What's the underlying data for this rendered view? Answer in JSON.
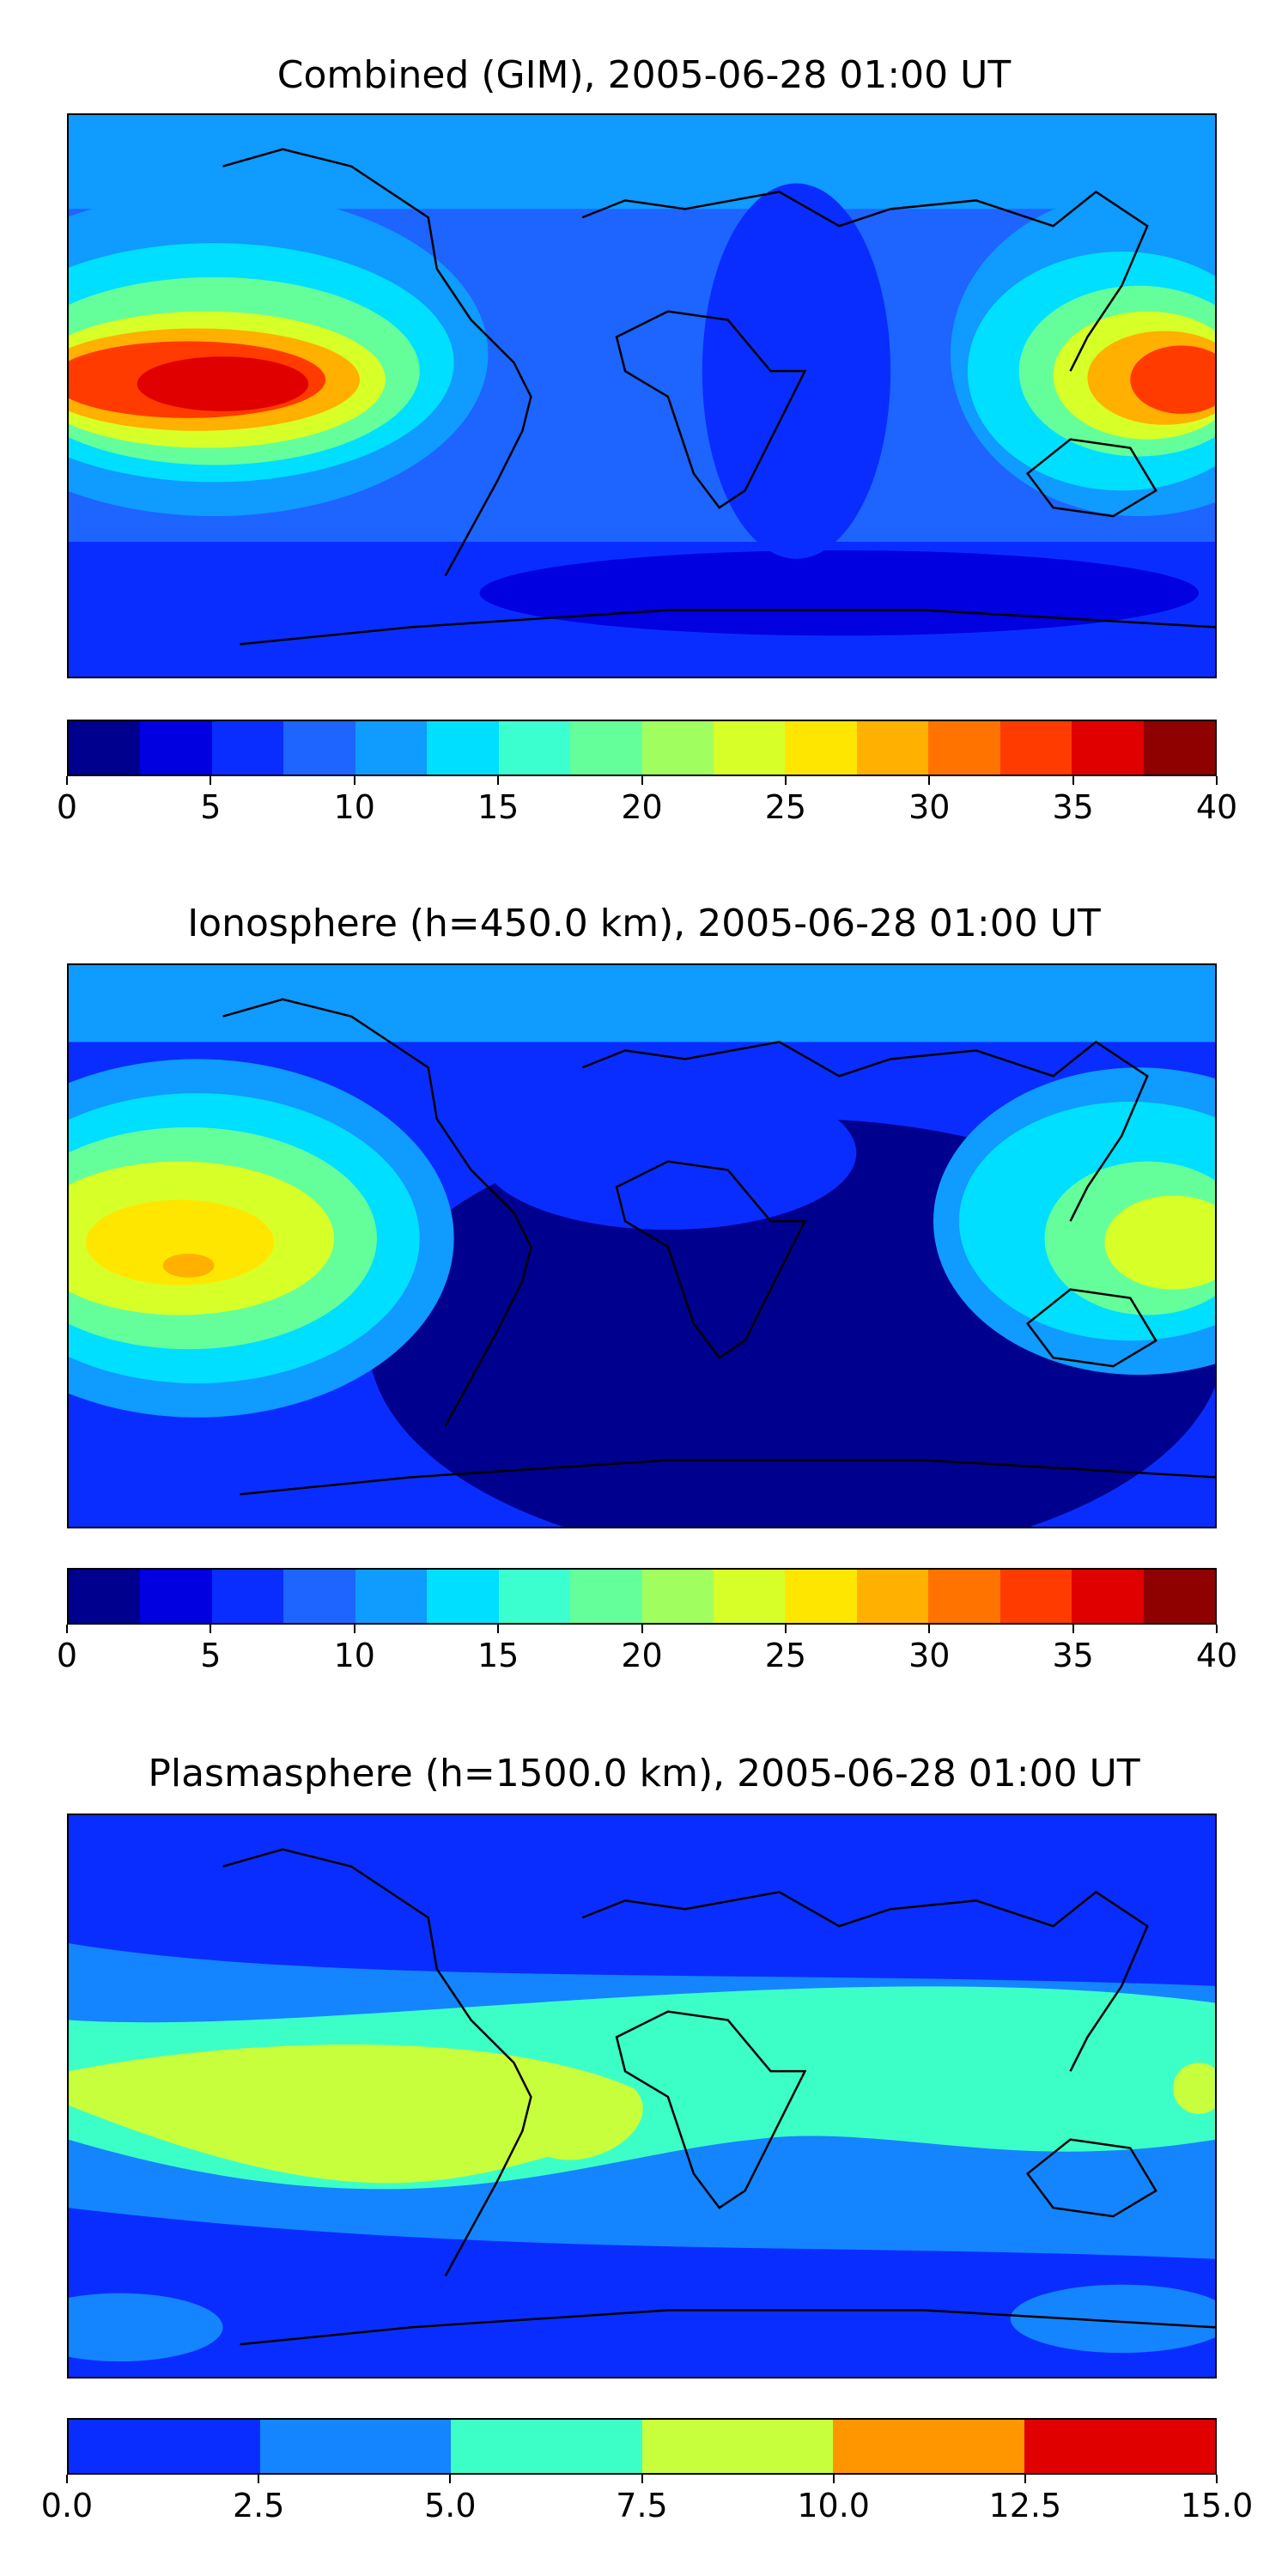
{
  "panels": [
    {
      "title": "Combined (GIM), 2005-06-28 01:00 UT",
      "colorbar": {
        "colors": [
          "#00008f",
          "#0000e0",
          "#0a2dff",
          "#1e64ff",
          "#0f9bff",
          "#00dfff",
          "#3cffd0",
          "#64ff9a",
          "#a0ff5f",
          "#d7ff28",
          "#ffe600",
          "#ffb000",
          "#ff7400",
          "#ff3b00",
          "#e00000",
          "#8f0000"
        ],
        "ticks": [
          "0",
          "5",
          "10",
          "15",
          "20",
          "25",
          "30",
          "35",
          "40"
        ]
      }
    },
    {
      "title": "Ionosphere  (h=450.0 km), 2005-06-28 01:00 UT",
      "colorbar": {
        "colors": [
          "#00008f",
          "#0000e0",
          "#0a2dff",
          "#1e64ff",
          "#0f9bff",
          "#00dfff",
          "#3cffd0",
          "#64ff9a",
          "#a0ff5f",
          "#d7ff28",
          "#ffe600",
          "#ffb000",
          "#ff7400",
          "#ff3b00",
          "#e00000",
          "#8f0000"
        ],
        "ticks": [
          "0",
          "5",
          "10",
          "15",
          "20",
          "25",
          "30",
          "35",
          "40"
        ]
      }
    },
    {
      "title": "Plasmasphere (h=1500.0 km), 2005-06-28 01:00 UT",
      "colorbar": {
        "colors": [
          "#0a2dff",
          "#1485ff",
          "#3cffc8",
          "#c8ff3c",
          "#ff9600",
          "#e00000"
        ],
        "ticks": [
          "0.0",
          "2.5",
          "5.0",
          "7.5",
          "10.0",
          "12.5",
          "15.0"
        ]
      }
    }
  ]
}
